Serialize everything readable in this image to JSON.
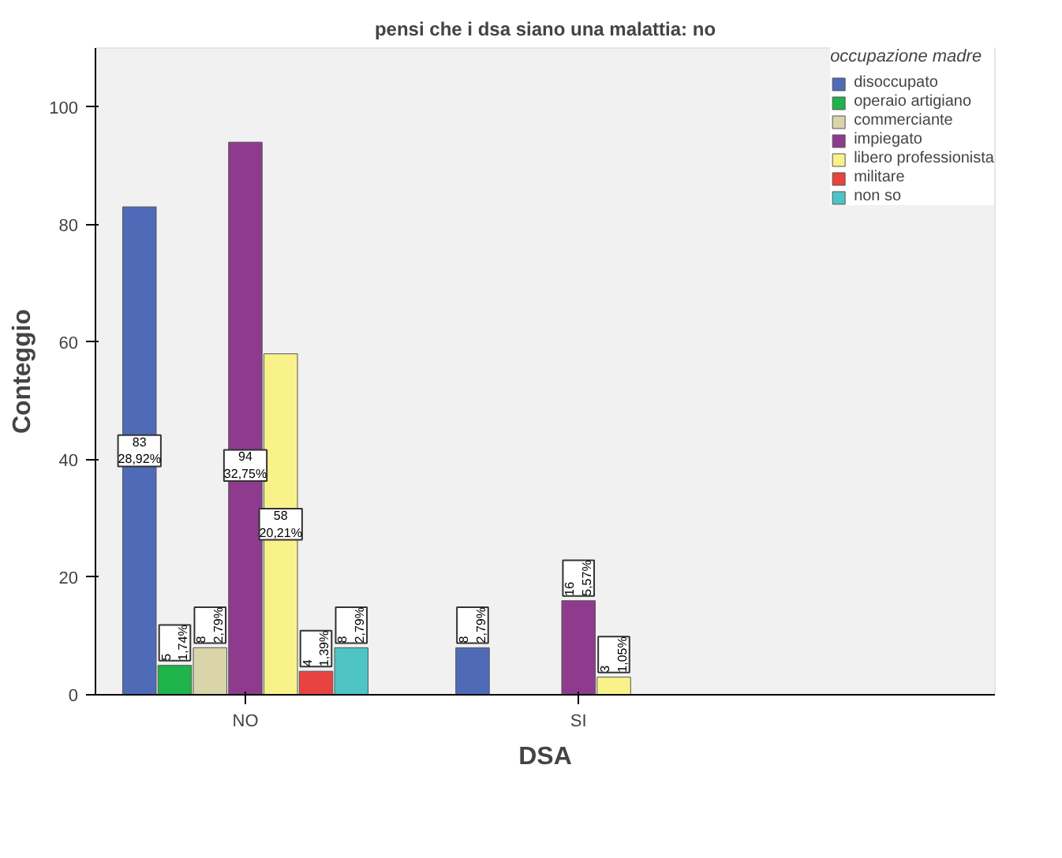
{
  "chart_data": {
    "type": "bar",
    "title": "pensi che i dsa siano una malattia: no",
    "xlabel": "DSA",
    "ylabel": "Conteggio",
    "legend_title": "occupazione madre",
    "categories": [
      "NO",
      "SI"
    ],
    "series": [
      {
        "name": "disoccupato",
        "color": "#4f6bb8",
        "values": [
          83,
          8
        ],
        "value_labels": [
          "83\n28,92%",
          "8\n2,79%"
        ]
      },
      {
        "name": "operaio artigiano",
        "color": "#1fb34b",
        "values": [
          5,
          null
        ],
        "value_labels": [
          "5\n1,74%",
          null
        ]
      },
      {
        "name": "commerciante",
        "color": "#d9d4a9",
        "values": [
          8,
          null
        ],
        "value_labels": [
          "8\n2,79%",
          null
        ]
      },
      {
        "name": "impiegato",
        "color": "#8e3b8e",
        "values": [
          94,
          16
        ],
        "value_labels": [
          "94\n32,75%",
          "16\n5,57%"
        ]
      },
      {
        "name": "libero professionista",
        "color": "#f9f28a",
        "values": [
          58,
          3
        ],
        "value_labels": [
          "58\n20,21%",
          "3\n1,05%"
        ]
      },
      {
        "name": "militare",
        "color": "#e8433f",
        "values": [
          4,
          null
        ],
        "value_labels": [
          "4\n1,39%",
          null
        ]
      },
      {
        "name": "non so",
        "color": "#4fc4c4",
        "values": [
          8,
          null
        ],
        "value_labels": [
          "8\n2,79%",
          null
        ]
      }
    ],
    "ylim": [
      0,
      110
    ],
    "yticks": [
      0,
      20,
      40,
      60,
      80,
      100
    ],
    "legend": "right"
  }
}
